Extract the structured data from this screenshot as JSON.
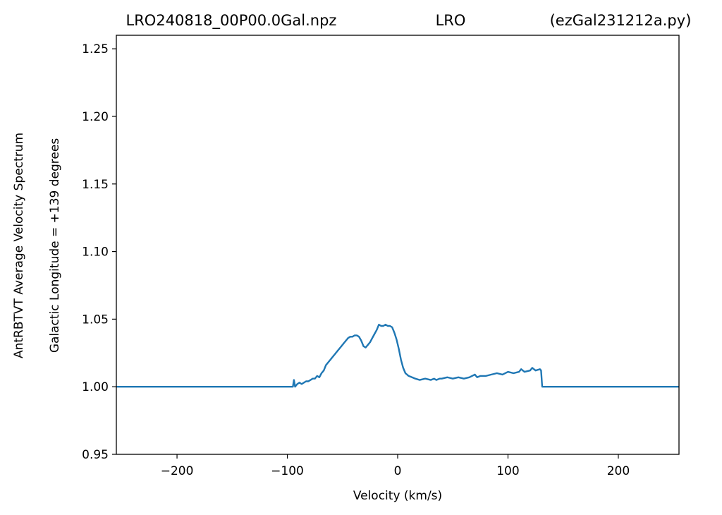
{
  "chart_data": {
    "type": "line",
    "title_left": "LRO240818_00P00.0Gal.npz",
    "title_center": "LRO",
    "title_right": "(ezGal231212a.py)",
    "xlabel": "Velocity (km/s)",
    "ylabel_line1": "AntRBTVT Average Velocity Spectrum",
    "ylabel_line2": "Galactic Longitude = +139 degrees",
    "xlim": [
      -255,
      255
    ],
    "ylim": [
      0.95,
      1.26
    ],
    "x_ticks": [
      -200,
      -100,
      0,
      100,
      200
    ],
    "x_tick_labels": [
      "−200",
      "−100",
      "0",
      "100",
      "200"
    ],
    "y_ticks": [
      0.95,
      1.0,
      1.05,
      1.1,
      1.15,
      1.2,
      1.25
    ],
    "y_tick_labels": [
      "0.95",
      "1.00",
      "1.05",
      "1.10",
      "1.15",
      "1.20",
      "1.25"
    ],
    "grid": false,
    "line_color": "#1f77b4",
    "series": [
      {
        "x": [
          -255,
          -95,
          -94,
          -93,
          -92,
          -91,
          -89,
          -87,
          -85,
          -83,
          -81,
          -79,
          -77,
          -75,
          -73,
          -71,
          -69,
          -67,
          -65,
          -63,
          -61,
          -59,
          -57,
          -55,
          -53,
          -51,
          -49,
          -47,
          -45,
          -43,
          -41,
          -39,
          -37,
          -35,
          -33,
          -31,
          -29,
          -27,
          -25,
          -23,
          -21,
          -19,
          -17,
          -15,
          -13,
          -11,
          -9,
          -7,
          -5,
          -3,
          -1,
          1,
          3,
          5,
          7,
          10,
          13,
          16,
          20,
          25,
          30,
          33,
          35,
          38,
          40,
          45,
          50,
          55,
          60,
          65,
          70,
          72,
          75,
          80,
          85,
          90,
          95,
          100,
          105,
          110,
          112,
          115,
          120,
          122,
          125,
          129,
          130,
          131,
          255
        ],
        "y": [
          1.0,
          1.0,
          1.005,
          1.0,
          1.001,
          1.002,
          1.003,
          1.002,
          1.003,
          1.004,
          1.004,
          1.005,
          1.006,
          1.006,
          1.008,
          1.007,
          1.01,
          1.012,
          1.016,
          1.018,
          1.02,
          1.022,
          1.024,
          1.026,
          1.028,
          1.03,
          1.032,
          1.034,
          1.036,
          1.037,
          1.037,
          1.038,
          1.038,
          1.037,
          1.034,
          1.03,
          1.029,
          1.031,
          1.033,
          1.036,
          1.039,
          1.042,
          1.046,
          1.045,
          1.045,
          1.046,
          1.045,
          1.045,
          1.044,
          1.04,
          1.035,
          1.028,
          1.02,
          1.014,
          1.01,
          1.008,
          1.007,
          1.006,
          1.005,
          1.006,
          1.005,
          1.006,
          1.005,
          1.006,
          1.006,
          1.007,
          1.006,
          1.007,
          1.006,
          1.007,
          1.009,
          1.007,
          1.008,
          1.008,
          1.009,
          1.01,
          1.009,
          1.011,
          1.01,
          1.011,
          1.013,
          1.011,
          1.012,
          1.014,
          1.012,
          1.013,
          1.012,
          1.0,
          1.0
        ]
      }
    ]
  }
}
